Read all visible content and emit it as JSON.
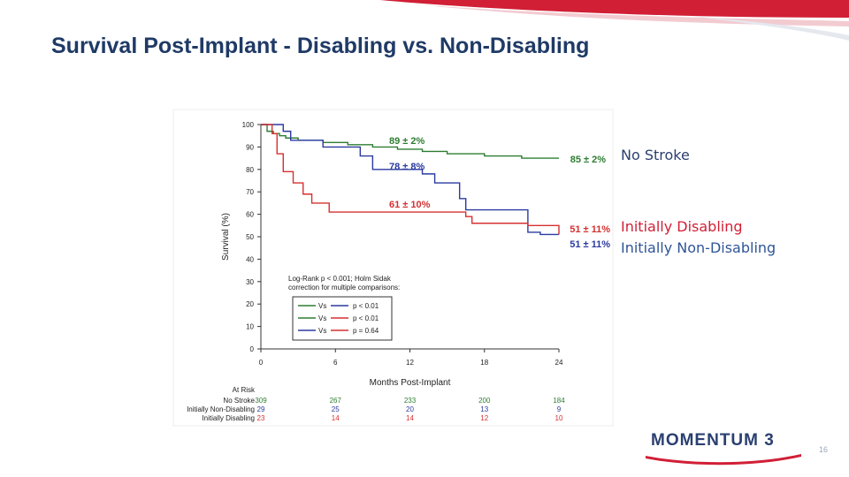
{
  "slide": {
    "title": "Survival Post-Implant - Disabling vs. Non-Disabling",
    "page_number": "16",
    "logo_text": "MOMENTUM 3",
    "accent_color": "#d11f36"
  },
  "chart_data": {
    "type": "line",
    "step": true,
    "ylabel": "Survival (%)",
    "xlabel": "Months Post-Implant",
    "xlim": [
      0,
      24
    ],
    "ylim": [
      0,
      100
    ],
    "xticks": [
      0,
      6,
      12,
      18,
      24
    ],
    "yticks": [
      0,
      10,
      20,
      30,
      40,
      50,
      60,
      70,
      80,
      90,
      100
    ],
    "series": [
      {
        "name": "No Stroke",
        "color": "#2e7d32",
        "x": [
          0,
          0.5,
          1,
          1.5,
          2,
          3,
          4,
          5,
          6,
          7,
          8,
          9,
          10,
          11,
          12,
          13,
          14,
          15,
          16,
          17,
          18,
          19,
          20,
          21,
          22,
          23,
          24
        ],
        "y": [
          100,
          97,
          96,
          95,
          94,
          93,
          93,
          92,
          92,
          91,
          91,
          90,
          90,
          89,
          89,
          88,
          88,
          87,
          87,
          87,
          86,
          86,
          86,
          85,
          85,
          85,
          85
        ]
      },
      {
        "name": "Initially Non-Disabling",
        "color": "#2b3aa0",
        "x": [
          0,
          1.8,
          2.4,
          5,
          8,
          9,
          11,
          13,
          14,
          16,
          16.5,
          21.5,
          22.5,
          24
        ],
        "y": [
          100,
          97,
          93,
          90,
          86,
          80,
          80,
          78,
          74,
          67,
          62,
          52,
          51,
          51
        ]
      },
      {
        "name": "Initially Disabling",
        "color": "#d63030",
        "x": [
          0,
          0.9,
          1.3,
          1.8,
          2.6,
          3.4,
          4.1,
          5.5,
          12,
          14,
          16.5,
          17,
          21.5,
          24
        ],
        "y": [
          100,
          96,
          87,
          79,
          74,
          69,
          65,
          61,
          61,
          61,
          59,
          56,
          55,
          51
        ]
      }
    ],
    "annotations": [
      {
        "text": "89 ± 2%",
        "x": 12,
        "y": 89,
        "color": "#2e7d32"
      },
      {
        "text": "85 ± 2%",
        "x": 24,
        "y": 85,
        "color": "#2e7d32"
      },
      {
        "text": "78 ± 8%",
        "x": 12,
        "y": 78,
        "color": "#2b3aa0"
      },
      {
        "text": "61 ± 10%",
        "x": 12,
        "y": 61,
        "color": "#d63030"
      },
      {
        "text": "51 ± 11%",
        "x": 24,
        "y": 51,
        "color": "#d63030"
      },
      {
        "text": "51 ± 11%",
        "x": 24,
        "y": 51,
        "color": "#2b3aa0"
      }
    ],
    "side_labels": [
      {
        "text": "No Stroke",
        "color": "#2b3f6e"
      },
      {
        "text": "Initially Disabling",
        "color": "#d11f36"
      },
      {
        "text": "Initially Non-Disabling",
        "color": "#2f5597"
      }
    ],
    "stats_text": [
      "Log-Rank p < 0.001; Holm Sidak",
      "correction for multiple comparisons:"
    ],
    "comparisons": [
      {
        "a": "No Stroke",
        "b": "Initially Non-Disabling",
        "vs": "Vs",
        "p": "p < 0.01"
      },
      {
        "a": "No Stroke",
        "b": "Initially Disabling",
        "vs": "Vs",
        "p": "p < 0.01"
      },
      {
        "a": "Initially Non-Disabling",
        "b": "Initially Disabling",
        "vs": "Vs",
        "p": "p = 0.64"
      }
    ],
    "at_risk": {
      "title": "At Risk",
      "times": [
        0,
        6,
        12,
        18,
        24
      ],
      "rows": [
        {
          "label": "No Stroke",
          "color": "#2e7d32",
          "values": [
            "309",
            "267",
            "233",
            "200",
            "184"
          ]
        },
        {
          "label": "Initially Non-Disabling",
          "color": "#2b3aa0",
          "values": [
            "29",
            "25",
            "20",
            "13",
            "9"
          ]
        },
        {
          "label": "Initially Disabling",
          "color": "#d63030",
          "values": [
            "23",
            "14",
            "14",
            "12",
            "10"
          ]
        }
      ]
    }
  }
}
